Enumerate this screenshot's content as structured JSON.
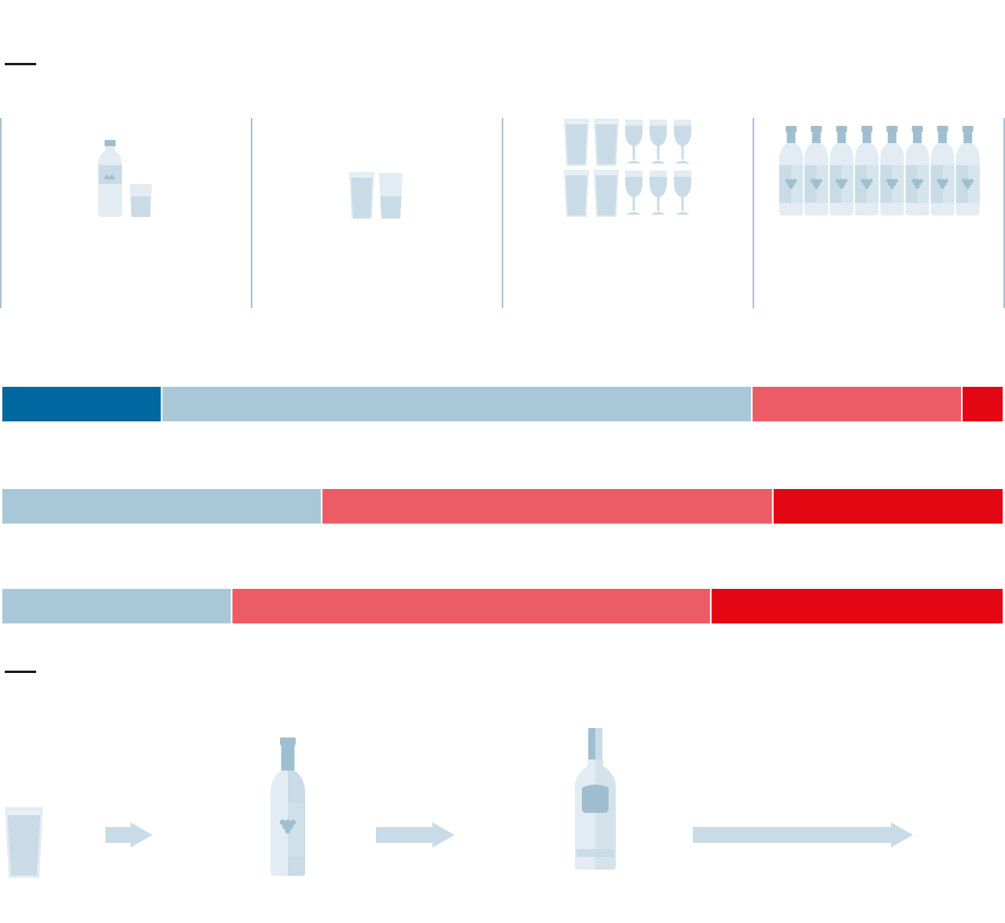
{
  "colors": {
    "icon_fill": "#c9dbe6",
    "icon_light": "#e2ecf2",
    "icon_mid": "#9fbfd0",
    "divider": "#aac1d0",
    "arrow": "#c9dbe6",
    "seg_dark_blue": "#0068a0",
    "seg_light_blue": "#a8c8d8",
    "seg_pink": "#ec5c66",
    "seg_red": "#e30613"
  },
  "panels": [
    {
      "icon": "water-bottle-and-glass-icon",
      "count": 1
    },
    {
      "icon": "beer-glass-icon",
      "count": 2
    },
    {
      "icon": "beer-glass-and-wine-glass-icon",
      "count": 10
    },
    {
      "icon": "wine-bottle-icon",
      "count": 8
    }
  ],
  "chart_data": {
    "type": "bar",
    "stacked": true,
    "orientation": "horizontal",
    "title": "",
    "xlabel": "",
    "ylabel": "",
    "xlim": [
      0,
      100
    ],
    "rows": [
      {
        "segments": [
          {
            "value": 16.0,
            "color": "#0068a0"
          },
          {
            "value": 59.0,
            "color": "#a8c8d8"
          },
          {
            "value": 21.0,
            "color": "#ec5c66"
          },
          {
            "value": 4.0,
            "color": "#e30613"
          }
        ]
      },
      {
        "segments": [
          {
            "value": 32.0,
            "color": "#a8c8d8"
          },
          {
            "value": 45.1,
            "color": "#ec5c66"
          },
          {
            "value": 22.9,
            "color": "#e30613"
          }
        ]
      },
      {
        "segments": [
          {
            "value": 23.0,
            "color": "#a8c8d8"
          },
          {
            "value": 47.9,
            "color": "#ec5c66"
          },
          {
            "value": 29.1,
            "color": "#e30613"
          }
        ]
      }
    ]
  },
  "flow": [
    {
      "type": "icon",
      "icon": "beer-glass-icon"
    },
    {
      "type": "arrow",
      "icon": "arrow-right-icon"
    },
    {
      "type": "icon",
      "icon": "wine-bottle-icon"
    },
    {
      "type": "arrow",
      "icon": "arrow-right-icon"
    },
    {
      "type": "icon",
      "icon": "vodka-bottle-icon"
    },
    {
      "type": "arrow",
      "icon": "long-arrow-right-icon"
    }
  ]
}
